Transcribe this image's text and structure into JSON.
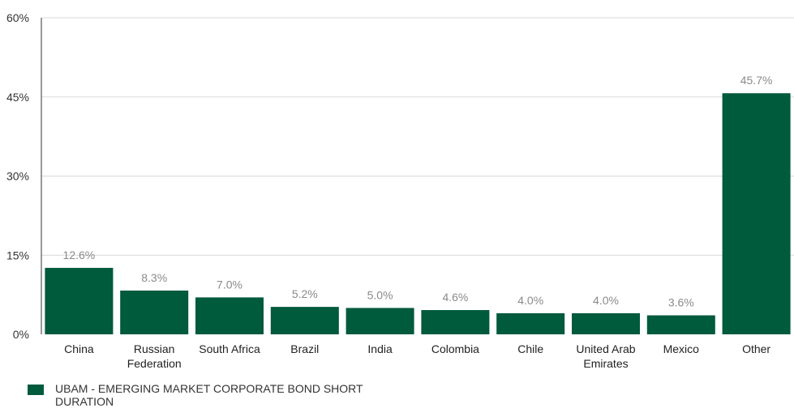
{
  "chart_data": {
    "type": "bar",
    "categories": [
      "China",
      "Russian Federation",
      "South Africa",
      "Brazil",
      "India",
      "Colombia",
      "Chile",
      "United Arab Emirates",
      "Mexico",
      "Other"
    ],
    "series": [
      {
        "name": "UBAM - EMERGING MARKET CORPORATE BOND SHORT DURATION",
        "values": [
          12.6,
          8.3,
          7.0,
          5.2,
          5.0,
          4.6,
          4.0,
          4.0,
          3.6,
          45.7
        ]
      }
    ],
    "data_labels": [
      "12.6%",
      "8.3%",
      "7.0%",
      "5.2%",
      "5.0%",
      "4.6%",
      "4.0%",
      "4.0%",
      "3.6%",
      "45.7%"
    ],
    "y_ticks": [
      0,
      15,
      30,
      45,
      60
    ],
    "y_tick_labels": [
      "0%",
      "15%",
      "30%",
      "45%",
      "60%"
    ],
    "ylim": [
      0,
      60
    ],
    "title": "",
    "xlabel": "",
    "ylabel": "",
    "grid": true,
    "legend_position": "bottom-left",
    "colors": {
      "bar": "#005a3c",
      "grid": "#d9d9d9",
      "axis": "#333333",
      "data_label": "#8a8a8a"
    }
  }
}
